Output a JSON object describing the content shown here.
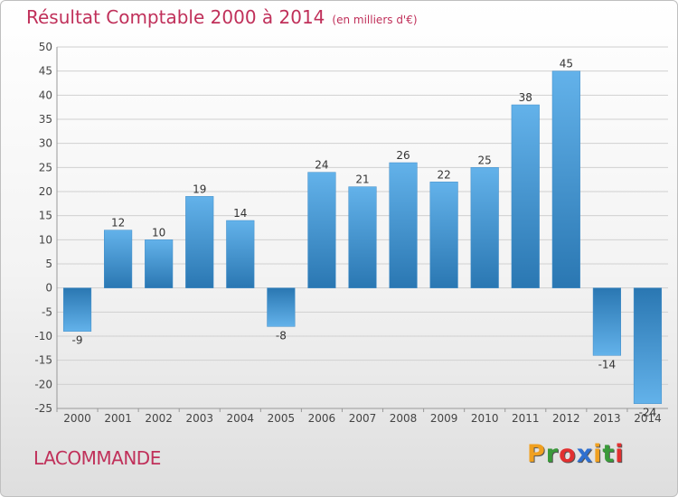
{
  "chart_data": {
    "type": "bar",
    "title": "Résultat Comptable 2000 à 2014",
    "subtitle": "(en milliers d'€)",
    "categories": [
      "2000",
      "2001",
      "2002",
      "2003",
      "2004",
      "2005",
      "2006",
      "2007",
      "2008",
      "2009",
      "2010",
      "2011",
      "2012",
      "2013",
      "2014"
    ],
    "values": [
      -9,
      12,
      10,
      19,
      14,
      -8,
      24,
      21,
      26,
      22,
      25,
      38,
      45,
      -14,
      -24
    ],
    "ylim": [
      -25,
      50
    ],
    "yticks": [
      50,
      45,
      40,
      35,
      30,
      25,
      20,
      15,
      10,
      5,
      0,
      -5,
      -10,
      -15,
      -20,
      -25
    ],
    "grid": true,
    "xlabel": "",
    "ylabel": ""
  },
  "place_name": "LACOMMANDE",
  "logo": {
    "letters": [
      "P",
      "r",
      "o",
      "x",
      "i",
      "t",
      "i"
    ],
    "colors": [
      "#f0a020",
      "#3a9a3a",
      "#e23030",
      "#3070d0",
      "#f0a020",
      "#3a9a3a",
      "#e23030"
    ]
  },
  "colors": {
    "title": "#c0305a",
    "bar_light": "#63b2ea",
    "bar_dark": "#2a77b2",
    "grid": "#d0d0d0",
    "axis_text": "#444444"
  }
}
